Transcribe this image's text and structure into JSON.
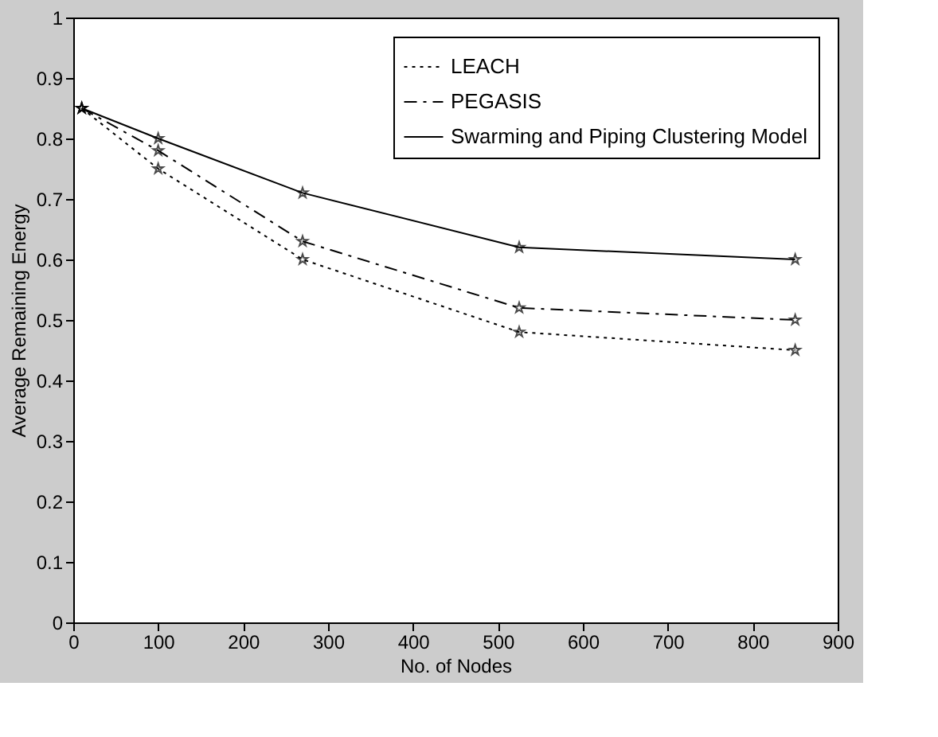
{
  "chart_data": {
    "type": "line",
    "xlabel": "No. of Nodes",
    "ylabel": "Average Remaining Energy",
    "x": [
      10,
      100,
      270,
      525,
      850
    ],
    "series": [
      {
        "name": "LEACH",
        "color": "#000000",
        "values": [
          0.85,
          0.75,
          0.6,
          0.48,
          0.45
        ],
        "line_style": "dotted"
      },
      {
        "name": "PEGASIS",
        "color": "#000000",
        "values": [
          0.85,
          0.78,
          0.63,
          0.52,
          0.5
        ],
        "line_style": "dashed"
      },
      {
        "name": "Swarming and Piping Clustering Model",
        "color": "#000000",
        "values": [
          0.85,
          0.8,
          0.71,
          0.62,
          0.6
        ],
        "line_style": "solid"
      }
    ],
    "xlim": [
      0,
      900
    ],
    "xticks": [
      0,
      100,
      200,
      300,
      400,
      500,
      600,
      700,
      800,
      900
    ],
    "ylim": [
      0,
      1
    ],
    "yticks": [
      0,
      0.1,
      0.2,
      0.3,
      0.4,
      0.5,
      0.6,
      0.7,
      0.8,
      0.9,
      1
    ],
    "grid": false,
    "legend": "top right",
    "marker": "star"
  }
}
